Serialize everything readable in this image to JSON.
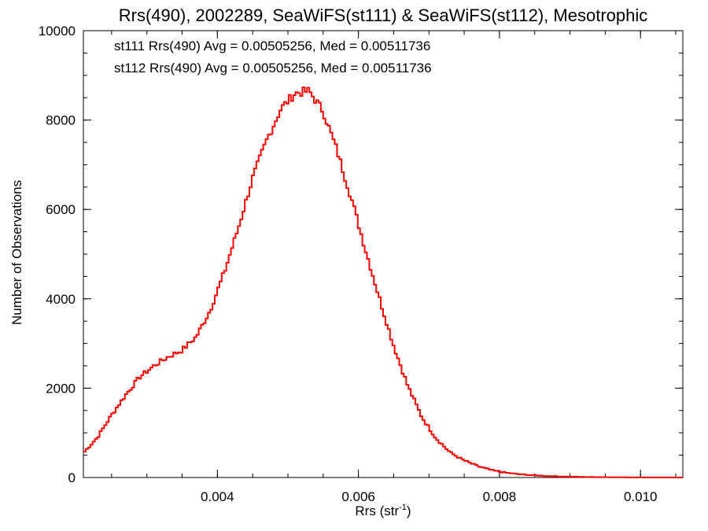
{
  "chart_data": {
    "type": "histogram-step",
    "title": "Rrs(490), 2002289, SeaWiFS(st111) & SeaWiFS(st112), Mesotrophic",
    "xlabel_main": "Rrs (str",
    "xlabel_sup": "-1",
    "xlabel_close": ")",
    "ylabel": "Number of Observations",
    "xlim": [
      0.0021,
      0.0106
    ],
    "ylim": [
      0,
      10000
    ],
    "xticks": [
      0.004,
      0.006,
      0.008,
      0.01
    ],
    "xtick_labels": [
      "0.004",
      "0.006",
      "0.008",
      "0.010"
    ],
    "xminor_step": 0.0005,
    "yticks": [
      0,
      2000,
      4000,
      6000,
      8000,
      10000
    ],
    "ytick_labels": [
      "0",
      "2000",
      "4000",
      "6000",
      "8000",
      "10000"
    ],
    "yminor_step": 500,
    "grid": false,
    "annotations": [
      {
        "text": "st111 Rrs(490) Avg = 0.00505256, Med = 0.00511736",
        "color": "#000000"
      },
      {
        "text": "st112 Rrs(490) Avg = 0.00505256, Med = 0.00511736",
        "color": "#ff0000"
      }
    ],
    "series": [
      {
        "color": "#ff0000",
        "x": [
          0.0021,
          0.0023,
          0.0025,
          0.0027,
          0.0029,
          0.0031,
          0.0033,
          0.0035,
          0.0037,
          0.0039,
          0.0041,
          0.0043,
          0.0045,
          0.0047,
          0.0049,
          0.0051,
          0.0053,
          0.0055,
          0.0057,
          0.0059,
          0.0061,
          0.0063,
          0.0065,
          0.0067,
          0.0069,
          0.0071,
          0.0073,
          0.0075,
          0.0077,
          0.0079,
          0.0081,
          0.0083,
          0.0085,
          0.0087,
          0.0089,
          0.0091,
          0.0093,
          0.0095,
          0.0097,
          0.0099,
          0.0101,
          0.0103,
          0.0105,
          0.0106
        ],
        "y": [
          550,
          900,
          1400,
          1850,
          2250,
          2500,
          2700,
          2850,
          3150,
          3750,
          4600,
          5600,
          6700,
          7550,
          8250,
          8600,
          8650,
          8200,
          7300,
          6250,
          5100,
          4000,
          2950,
          2050,
          1350,
          880,
          560,
          380,
          250,
          160,
          105,
          70,
          48,
          32,
          22,
          15,
          10,
          7,
          5,
          3,
          2,
          1,
          0,
          0
        ]
      }
    ]
  }
}
